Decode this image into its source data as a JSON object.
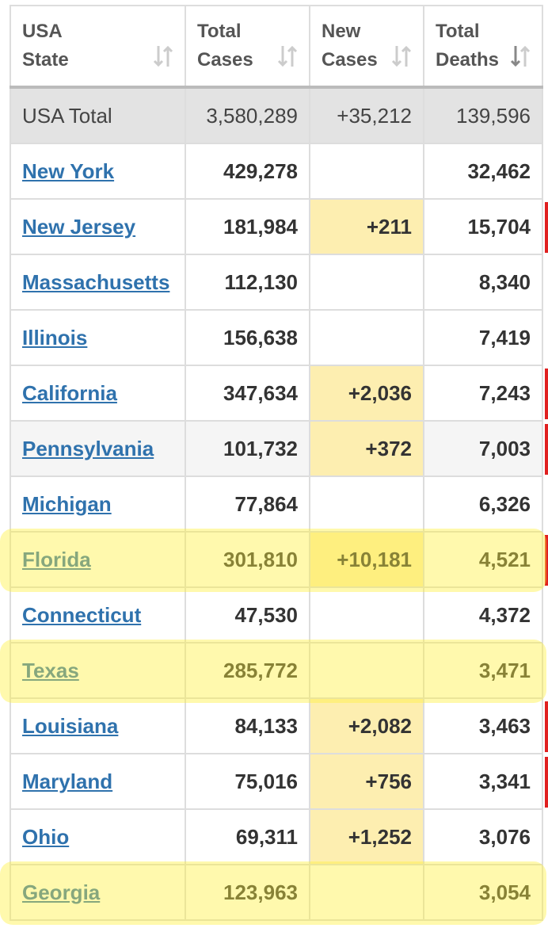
{
  "table": {
    "header": [
      "USA State",
      "Total Cases",
      "New Cases",
      "Total Deaths"
    ],
    "total_row": [
      "USA Total",
      "3,580,289",
      "+35,212",
      "139,596"
    ],
    "rows": [
      [
        "New York",
        "429,278",
        null,
        "32,462"
      ],
      [
        "New Jersey",
        "181,984",
        "+211",
        "15,704"
      ],
      [
        "Massachusetts",
        "112,130",
        null,
        "8,340"
      ],
      [
        "Illinois",
        "156,638",
        null,
        "7,419"
      ],
      [
        "California",
        "347,634",
        "+2,036",
        "7,243"
      ],
      [
        "Pennsylvania",
        "101,732",
        "+372",
        "7,003"
      ],
      [
        "Michigan",
        "77,864",
        null,
        "6,326"
      ],
      [
        "Florida",
        "301,810",
        "+10,181",
        "4,521"
      ],
      [
        "Connecticut",
        "47,530",
        null,
        "4,372"
      ],
      [
        "Texas",
        "285,772",
        null,
        "3,471"
      ],
      [
        "Louisiana",
        "84,133",
        "+2,082",
        "3,463"
      ],
      [
        "Maryland",
        "75,016",
        "+756",
        "3,341"
      ],
      [
        "Ohio",
        "69,311",
        "+1,252",
        "3,076"
      ],
      [
        "Georgia",
        "123,963",
        null,
        "3,054"
      ]
    ]
  }
}
